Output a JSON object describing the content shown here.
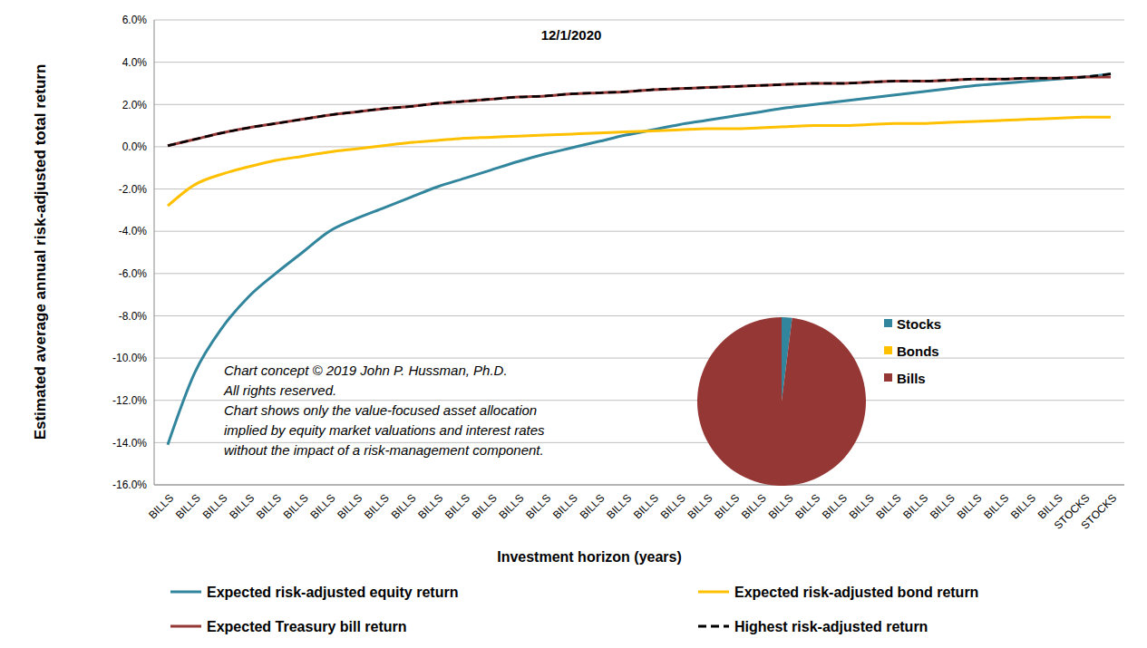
{
  "chart_data": [
    {
      "type": "line",
      "title": "12/1/2020",
      "x_label": "Investment horizon (years)",
      "y_label": "Estimated average annual risk-adjusted total return",
      "annotations": [
        "Chart concept © 2019 John P. Hussman, Ph.D.",
        "All rights reserved.",
        "Chart shows only the value-focused asset allocation",
        "implied by equity market valuations and interest rates",
        "without the impact of a risk-management component."
      ],
      "categories": [
        "BILLS",
        "BILLS",
        "BILLS",
        "BILLS",
        "BILLS",
        "BILLS",
        "BILLS",
        "BILLS",
        "BILLS",
        "BILLS",
        "BILLS",
        "BILLS",
        "BILLS",
        "BILLS",
        "BILLS",
        "BILLS",
        "BILLS",
        "BILLS",
        "BILLS",
        "BILLS",
        "BILLS",
        "BILLS",
        "BILLS",
        "BILLS",
        "BILLS",
        "BILLS",
        "BILLS",
        "BILLS",
        "BILLS",
        "BILLS",
        "BILLS",
        "BILLS",
        "BILLS",
        "BILLS",
        "STOCKS",
        "STOCKS"
      ],
      "ylim": [
        -16,
        6
      ],
      "yticks": [
        {
          "value": -16,
          "label": "-16.0%"
        },
        {
          "value": -14,
          "label": "-14.0%"
        },
        {
          "value": -12,
          "label": "-12.0%"
        },
        {
          "value": -10,
          "label": "-10.0%"
        },
        {
          "value": -8,
          "label": "-8.0%"
        },
        {
          "value": -6,
          "label": "-6.0%"
        },
        {
          "value": -4,
          "label": "-4.0%"
        },
        {
          "value": -2,
          "label": "-2.0%"
        },
        {
          "value": 0,
          "label": "0.0%"
        },
        {
          "value": 2,
          "label": "2.0%"
        },
        {
          "value": 4,
          "label": "4.0%"
        },
        {
          "value": 6,
          "label": "6.0%"
        }
      ],
      "grid": true,
      "series": [
        {
          "name": "Expected risk-adjusted equity return",
          "color": "#31859c",
          "line_style": "solid",
          "marker": "none",
          "values": [
            -14.1,
            -10.7,
            -8.6,
            -7.1,
            -6.0,
            -5.0,
            -4.0,
            -3.4,
            -2.9,
            -2.4,
            -1.9,
            -1.5,
            -1.1,
            -0.7,
            -0.35,
            -0.05,
            0.25,
            0.55,
            0.8,
            1.05,
            1.25,
            1.45,
            1.65,
            1.85,
            2.0,
            2.15,
            2.3,
            2.45,
            2.6,
            2.75,
            2.9,
            3.0,
            3.1,
            3.2,
            3.3,
            3.45
          ]
        },
        {
          "name": "Expected risk-adjusted bond return",
          "color": "#ffc000",
          "line_style": "solid",
          "marker": "none",
          "values": [
            -2.8,
            -1.8,
            -1.3,
            -0.95,
            -0.65,
            -0.45,
            -0.25,
            -0.1,
            0.05,
            0.2,
            0.3,
            0.4,
            0.45,
            0.5,
            0.55,
            0.6,
            0.65,
            0.7,
            0.75,
            0.8,
            0.85,
            0.85,
            0.9,
            0.95,
            1.0,
            1.0,
            1.05,
            1.1,
            1.1,
            1.15,
            1.2,
            1.25,
            1.3,
            1.35,
            1.4,
            1.4
          ]
        },
        {
          "name": "Expected Treasury bill return",
          "color": "#953735",
          "line_style": "solid",
          "marker": "none",
          "values": [
            0.05,
            0.35,
            0.65,
            0.9,
            1.1,
            1.3,
            1.5,
            1.65,
            1.8,
            1.9,
            2.05,
            2.15,
            2.25,
            2.35,
            2.4,
            2.5,
            2.55,
            2.6,
            2.7,
            2.75,
            2.8,
            2.85,
            2.9,
            2.95,
            3.0,
            3.0,
            3.05,
            3.1,
            3.1,
            3.15,
            3.2,
            3.2,
            3.25,
            3.25,
            3.3,
            3.3
          ]
        },
        {
          "name": "Highest risk-adjusted return",
          "color": "#000000",
          "line_style": "dashed",
          "marker": "none",
          "values": [
            0.05,
            0.35,
            0.65,
            0.9,
            1.1,
            1.3,
            1.5,
            1.65,
            1.8,
            1.9,
            2.05,
            2.15,
            2.25,
            2.35,
            2.4,
            2.5,
            2.55,
            2.6,
            2.7,
            2.75,
            2.8,
            2.85,
            2.9,
            2.95,
            3.0,
            3.0,
            3.05,
            3.1,
            3.1,
            3.15,
            3.2,
            3.2,
            3.25,
            3.25,
            3.3,
            3.45
          ]
        }
      ]
    },
    {
      "type": "pie",
      "categories": [
        "Stocks",
        "Bonds",
        "Bills"
      ],
      "values": [
        2,
        0,
        98
      ],
      "colors": [
        "#31859c",
        "#ffc000",
        "#953735"
      ],
      "legend": "right"
    }
  ]
}
